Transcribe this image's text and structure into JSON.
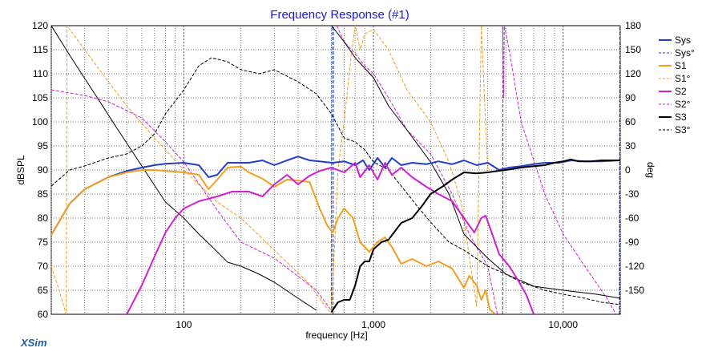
{
  "brand": "XSim",
  "chart_data": {
    "type": "line",
    "title": "Frequency Response (#1)",
    "xlabel": "frequency [Hz]",
    "ylabel_left": "dBSPL",
    "ylabel_right": "deg",
    "x_scale": "log",
    "xlim": [
      20,
      20000
    ],
    "ylim_left": [
      60,
      120
    ],
    "ylim_right": [
      -180,
      180
    ],
    "grid": true,
    "legend_position": "top-right",
    "x_tick_labels": [
      {
        "value": 100,
        "label": "100"
      },
      {
        "value": 1000,
        "label": "1,000"
      },
      {
        "value": 10000,
        "label": "10,000"
      }
    ],
    "y_left_ticks": [
      60,
      65,
      70,
      75,
      80,
      85,
      90,
      95,
      100,
      105,
      110,
      115,
      120
    ],
    "y_right_ticks": [
      -150,
      -120,
      -90,
      -60,
      -30,
      0,
      30,
      60,
      90,
      120,
      150,
      180
    ],
    "series": [
      {
        "name": "Sys",
        "color": "#1f3fc8",
        "dash": "solid",
        "axis": "left",
        "width": 2,
        "x": [
          20,
          25,
          30,
          40,
          50,
          60,
          70,
          80,
          100,
          120,
          135,
          150,
          170,
          190,
          220,
          260,
          300,
          350,
          400,
          460,
          520,
          570,
          610,
          700,
          800,
          880,
          950,
          1050,
          1150,
          1250,
          1400,
          1600,
          1900,
          2200,
          2600,
          3000,
          3500,
          4000,
          4600,
          5200,
          6000,
          7000,
          8000,
          9500,
          11000,
          13000,
          16000,
          20000
        ],
        "y": [
          76.5,
          83,
          86,
          88.5,
          89.8,
          90.5,
          91,
          91.3,
          91.5,
          91,
          88.5,
          89,
          91.5,
          91.5,
          91.5,
          92,
          91,
          92,
          92.8,
          92,
          91.8,
          91.6,
          91.5,
          91.8,
          91,
          92,
          90,
          92.5,
          90.5,
          92.5,
          91,
          91.5,
          91.2,
          91.8,
          91.2,
          92,
          91,
          91.5,
          90,
          90.5,
          90.8,
          91.2,
          91.5,
          91.5,
          92,
          91.8,
          91.8,
          92
        ]
      },
      {
        "name": "Sys°",
        "color": "#1f3fc8",
        "dash": "dashed",
        "axis": "right",
        "width": 1,
        "x": [
          600,
          602,
          604,
          612,
          614,
          616,
          4800,
          4810,
          4820,
          19800,
          19850,
          19900
        ],
        "y": [
          -180,
          0,
          180,
          -180,
          0,
          180,
          -180,
          0,
          180,
          -180,
          0,
          180
        ]
      },
      {
        "name": "S1",
        "color": "#f0a020",
        "dash": "solid",
        "axis": "left",
        "width": 2,
        "x": [
          20,
          25,
          30,
          40,
          50,
          60,
          70,
          80,
          100,
          120,
          135,
          150,
          170,
          200,
          220,
          260,
          300,
          350,
          400,
          460,
          520,
          570,
          610,
          650,
          700,
          780,
          850,
          950,
          1050,
          1150,
          1250,
          1400,
          1600,
          1900,
          2200,
          2600,
          3000,
          3200,
          3500,
          3700,
          3900,
          4100,
          4400
        ],
        "y": [
          76.5,
          83,
          86,
          88.5,
          89.5,
          90,
          90,
          89.8,
          89.5,
          89,
          86,
          88,
          90.5,
          90.7,
          89.5,
          88.2,
          86.5,
          88,
          87.8,
          87.5,
          82,
          78.5,
          77,
          80,
          82,
          80,
          75,
          73,
          75,
          76,
          74,
          70.5,
          71.5,
          70,
          71,
          69.5,
          65.5,
          68,
          66,
          63,
          65,
          61,
          60
        ]
      },
      {
        "name": "S1°",
        "color": "#f0a020",
        "dash": "dashed",
        "axis": "right",
        "width": 1,
        "x": [
          20,
          22,
          24,
          24.1,
          24.2,
          30,
          40,
          50,
          70,
          100,
          150,
          200,
          300,
          450,
          600,
          650,
          700,
          760,
          800,
          850,
          900,
          1000,
          1200,
          1500,
          2000,
          2500,
          2900,
          3500,
          3600,
          3700,
          4000
        ],
        "y": [
          -120,
          -150,
          -180,
          0,
          180,
          150,
          110,
          80,
          40,
          0,
          -40,
          -60,
          -100,
          -140,
          -180,
          0,
          60,
          140,
          180,
          150,
          170,
          175,
          150,
          100,
          60,
          10,
          -40,
          -170,
          0,
          180,
          0
        ]
      },
      {
        "name": "S2",
        "color": "#d020d0",
        "dash": "solid",
        "axis": "left",
        "width": 2,
        "x": [
          50,
          60,
          70,
          80,
          90,
          100,
          120,
          150,
          180,
          220,
          260,
          300,
          350,
          400,
          460,
          520,
          600,
          700,
          800,
          850,
          950,
          1050,
          1150,
          1250,
          1400,
          1600,
          1900,
          2200,
          2600,
          3000,
          3400,
          3700,
          3900,
          4200,
          4600,
          5200,
          5800,
          6400,
          7000
        ],
        "y": [
          60,
          66,
          72,
          77,
          80,
          82,
          83.5,
          84.5,
          85.5,
          85.5,
          84.5,
          87,
          89,
          87,
          88.8,
          89.8,
          90.5,
          89.5,
          91.5,
          88.5,
          91,
          88,
          91.5,
          89,
          90.5,
          88.5,
          86.5,
          85,
          83.5,
          80,
          77,
          80,
          80.5,
          77,
          72.5,
          70,
          67,
          64,
          60
        ]
      },
      {
        "name": "S2°",
        "color": "#d020d0",
        "dash": "dashed",
        "axis": "right",
        "width": 1,
        "x": [
          20,
          30,
          40,
          60,
          80,
          100,
          150,
          200,
          300,
          500,
          620,
          640,
          700,
          800,
          900,
          1000,
          1200,
          1500,
          2000,
          2600,
          3200,
          4000,
          4500,
          4800,
          4850,
          4900,
          5200,
          6000,
          8000,
          10000,
          13000,
          17000,
          19000,
          20000
        ],
        "y": [
          100,
          93,
          85,
          65,
          35,
          10,
          -50,
          -90,
          -110,
          -150,
          -180,
          180,
          160,
          145,
          130,
          120,
          90,
          50,
          20,
          -30,
          -80,
          -120,
          -180,
          180,
          90,
          180,
          150,
          60,
          -30,
          -80,
          -120,
          -160,
          -180,
          180
        ]
      },
      {
        "name": "S3",
        "color": "#000000",
        "dash": "solid",
        "axis": "left",
        "width": 2,
        "x": [
          600,
          650,
          700,
          750,
          800,
          850,
          900,
          950,
          1000,
          1100,
          1200,
          1400,
          1600,
          1800,
          2000,
          2300,
          2600,
          3000,
          3500,
          4000,
          4500,
          5000,
          6000,
          7000,
          8000,
          9000,
          10000,
          11000,
          12000,
          14000,
          16000,
          20000
        ],
        "y": [
          60.5,
          62.5,
          63,
          63,
          66,
          70,
          71,
          71,
          73.5,
          75,
          75.5,
          79,
          80,
          82.5,
          85,
          86.5,
          88,
          89.5,
          89.3,
          89.5,
          89.8,
          90,
          90.5,
          90.8,
          91,
          91.5,
          91.8,
          92.2,
          91.8,
          91.8,
          92,
          92
        ]
      },
      {
        "name": "S3°",
        "color": "#000000",
        "dash": "dashed",
        "axis": "right",
        "width": 1,
        "x": [
          20,
          25,
          30,
          40,
          50,
          60,
          70,
          80,
          100,
          120,
          140,
          170,
          200,
          250,
          300,
          400,
          500,
          600,
          700,
          800,
          900,
          1000,
          1200,
          1400,
          1700,
          2000,
          2500,
          3000,
          4000,
          5000,
          6000,
          8000,
          10000,
          13000,
          16000,
          20000
        ],
        "y": [
          -20,
          0,
          5,
          15,
          20,
          30,
          45,
          70,
          100,
          130,
          140,
          135,
          125,
          120,
          125,
          110,
          95,
          70,
          40,
          35,
          25,
          10,
          0,
          -20,
          -45,
          -65,
          -90,
          -100,
          -120,
          -130,
          -140,
          -150,
          -155,
          -160,
          -165,
          -168
        ]
      },
      {
        "name": "",
        "color": "#000000",
        "dash": "solid",
        "axis": "right",
        "width": 1,
        "x": [
          20,
          24,
          28,
          35,
          45,
          60,
          80,
          100,
          120,
          140,
          170,
          200,
          250,
          300,
          400,
          500,
          600,
          700,
          800,
          1000,
          1200,
          1500,
          2000,
          2500,
          3000,
          4000,
          5000,
          7000,
          10000,
          15000,
          20000
        ],
        "y": [
          180,
          150,
          125,
          90,
          50,
          5,
          -40,
          -60,
          -80,
          -95,
          -115,
          -120,
          -130,
          -140,
          -160,
          -175,
          180,
          160,
          140,
          115,
          80,
          50,
          10,
          -30,
          -80,
          -110,
          -130,
          -145,
          -150,
          -155,
          -160
        ]
      }
    ]
  }
}
